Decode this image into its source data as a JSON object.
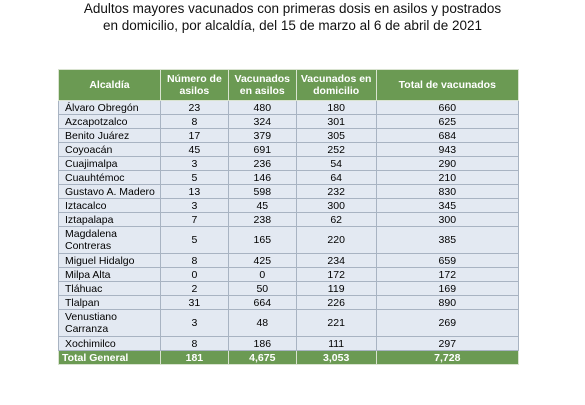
{
  "title": {
    "line1": "Adultos mayores vacunados con primeras dosis en asilos y postrados",
    "line2": "en domicilio, por alcaldía, del 15 de marzo al 6  de abril de 2021"
  },
  "table": {
    "headers": {
      "alcaldia": "Alcaldía",
      "asilos": "Número de asilos",
      "vac_asilos": "Vacunados en asilos",
      "vac_domicilio": "Vacunados en domicilio",
      "total": "Total de vacunados"
    },
    "rows": [
      {
        "alcaldia": "Álvaro Obregón",
        "asilos": "23",
        "vac_asilos": "480",
        "vac_domicilio": "180",
        "total": "660"
      },
      {
        "alcaldia": "Azcapotzalco",
        "asilos": "8",
        "vac_asilos": "324",
        "vac_domicilio": "301",
        "total": "625"
      },
      {
        "alcaldia": "Benito Juárez",
        "asilos": "17",
        "vac_asilos": "379",
        "vac_domicilio": "305",
        "total": "684"
      },
      {
        "alcaldia": "Coyoacán",
        "asilos": "45",
        "vac_asilos": "691",
        "vac_domicilio": "252",
        "total": "943"
      },
      {
        "alcaldia": "Cuajimalpa",
        "asilos": "3",
        "vac_asilos": "236",
        "vac_domicilio": "54",
        "total": "290"
      },
      {
        "alcaldia": "Cuauhtémoc",
        "asilos": "5",
        "vac_asilos": "146",
        "vac_domicilio": "64",
        "total": "210"
      },
      {
        "alcaldia": "Gustavo A. Madero",
        "asilos": "13",
        "vac_asilos": "598",
        "vac_domicilio": "232",
        "total": "830"
      },
      {
        "alcaldia": "Iztacalco",
        "asilos": "3",
        "vac_asilos": "45",
        "vac_domicilio": "300",
        "total": "345"
      },
      {
        "alcaldia": "Iztapalapa",
        "asilos": "7",
        "vac_asilos": "238",
        "vac_domicilio": "62",
        "total": "300"
      },
      {
        "alcaldia": "Magdalena Contreras",
        "asilos": "5",
        "vac_asilos": "165",
        "vac_domicilio": "220",
        "total": "385"
      },
      {
        "alcaldia": "Miguel Hidalgo",
        "asilos": "8",
        "vac_asilos": "425",
        "vac_domicilio": "234",
        "total": "659"
      },
      {
        "alcaldia": "Milpa Alta",
        "asilos": "0",
        "vac_asilos": "0",
        "vac_domicilio": "172",
        "total": "172"
      },
      {
        "alcaldia": "Tláhuac",
        "asilos": "2",
        "vac_asilos": "50",
        "vac_domicilio": "119",
        "total": "169"
      },
      {
        "alcaldia": "Tlalpan",
        "asilos": "31",
        "vac_asilos": "664",
        "vac_domicilio": "226",
        "total": "890"
      },
      {
        "alcaldia": "Venustiano Carranza",
        "asilos": "3",
        "vac_asilos": "48",
        "vac_domicilio": "221",
        "total": "269"
      },
      {
        "alcaldia": "Xochimilco",
        "asilos": "8",
        "vac_asilos": "186",
        "vac_domicilio": "111",
        "total": "297"
      }
    ],
    "total_row": {
      "alcaldia": "Total General",
      "asilos": "181",
      "vac_asilos": "4,675",
      "vac_domicilio": "3,053",
      "total": "7,728"
    }
  },
  "colors": {
    "header_bg": "#6b9a53",
    "cell_bg": "#e3e9f2"
  }
}
